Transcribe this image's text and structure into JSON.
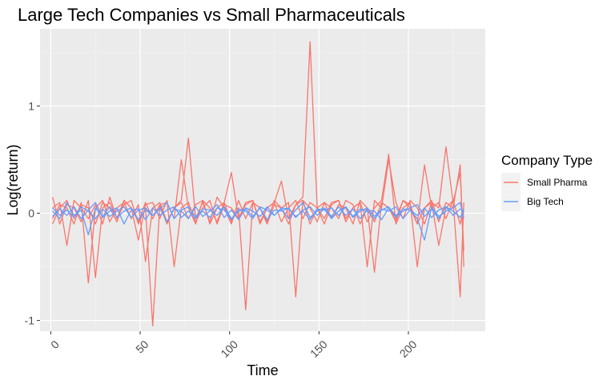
{
  "chart_data": {
    "type": "line",
    "title": "Large Tech Companies vs Small Pharmaceuticals",
    "xlabel": "Time",
    "ylabel": "Log(return)",
    "xlim": [
      -6,
      243
    ],
    "ylim": [
      -1.1,
      1.72
    ],
    "x_ticks": [
      0,
      50,
      100,
      150,
      200
    ],
    "x_tick_labels": [
      "0",
      "50",
      "100",
      "150",
      "200"
    ],
    "y_ticks": [
      -1,
      0,
      1
    ],
    "y_tick_labels": [
      "-1",
      "0",
      "1"
    ],
    "grid": true,
    "legend": {
      "title": "Company Type",
      "position": "right",
      "entries": [
        {
          "label": "Small Pharma",
          "color": "#F8766D"
        },
        {
          "label": "Big Tech",
          "color": "#619CFF"
        }
      ]
    },
    "series": [
      {
        "group": "Small Pharma",
        "color": "#F8766D",
        "x": [
          1,
          5,
          9,
          13,
          17,
          21,
          25,
          29,
          33,
          37,
          41,
          45,
          49,
          53,
          57,
          61,
          65,
          69,
          73,
          77,
          81,
          85,
          89,
          93,
          97,
          101,
          105,
          109,
          113,
          117,
          121,
          125,
          129,
          133,
          137,
          141,
          145,
          149,
          153,
          157,
          161,
          165,
          169,
          173,
          177,
          181,
          185,
          189,
          193,
          197,
          201,
          205,
          209,
          213,
          217,
          221,
          225,
          229,
          231
        ],
        "values": [
          0.05,
          0.1,
          -0.3,
          0.12,
          0.05,
          -0.05,
          0.08,
          -0.1,
          0.15,
          -0.05,
          0.12,
          0.05,
          -0.08,
          0.1,
          -0.05,
          0.08,
          -0.1,
          0.05,
          0.12,
          0.7,
          -0.05,
          0.1,
          -0.08,
          0.15,
          0.05,
          -0.1,
          0.12,
          -0.05,
          0.1,
          0.05,
          -0.08,
          0.12,
          0.05,
          -0.1,
          0.08,
          0.15,
          1.6,
          0.05,
          -0.05,
          0.1,
          0.12,
          -0.08,
          0.05,
          0.1,
          -0.5,
          0.12,
          0.05,
          0.5,
          0.1,
          -0.05,
          0.12,
          0.05,
          -0.1,
          0.1,
          0.05,
          0.62,
          0.1,
          0.38,
          -0.35
        ]
      },
      {
        "group": "Small Pharma",
        "color": "#F8766D",
        "x": [
          1,
          5,
          9,
          13,
          17,
          21,
          25,
          29,
          33,
          37,
          41,
          45,
          49,
          53,
          57,
          61,
          65,
          69,
          73,
          77,
          81,
          85,
          89,
          93,
          97,
          101,
          105,
          109,
          113,
          117,
          121,
          125,
          129,
          133,
          137,
          141,
          145,
          149,
          153,
          157,
          161,
          165,
          169,
          173,
          177,
          181,
          185,
          189,
          193,
          197,
          201,
          205,
          209,
          213,
          217,
          221,
          225,
          229,
          231
        ],
        "values": [
          -0.05,
          0.08,
          0.05,
          -0.1,
          0.1,
          -0.65,
          0.05,
          0.12,
          -0.08,
          0.05,
          0.1,
          -0.05,
          0.08,
          -0.45,
          0.05,
          0.1,
          -0.08,
          0.05,
          0.1,
          -0.05,
          0.08,
          0.12,
          -0.1,
          0.05,
          0.1,
          -0.08,
          0.05,
          -0.9,
          0.1,
          0.05,
          -0.1,
          0.08,
          0.05,
          0.1,
          -0.78,
          0.12,
          0.05,
          -0.08,
          0.1,
          0.05,
          -0.05,
          0.12,
          0.08,
          -0.1,
          0.05,
          -0.55,
          0.1,
          0.05,
          -0.08,
          0.12,
          0.05,
          -0.1,
          0.45,
          0.05,
          0.1,
          -0.05,
          0.12,
          -0.78,
          0.1
        ]
      },
      {
        "group": "Small Pharma",
        "color": "#F8766D",
        "x": [
          1,
          5,
          9,
          13,
          17,
          21,
          25,
          29,
          33,
          37,
          41,
          45,
          49,
          53,
          57,
          61,
          65,
          69,
          73,
          77,
          81,
          85,
          89,
          93,
          97,
          101,
          105,
          109,
          113,
          117,
          121,
          125,
          129,
          133,
          137,
          141,
          145,
          149,
          153,
          157,
          161,
          165,
          169,
          173,
          177,
          181,
          185,
          189,
          193,
          197,
          201,
          205,
          209,
          213,
          217,
          221,
          225,
          229,
          231
        ],
        "values": [
          0.15,
          -0.1,
          0.08,
          0.05,
          -0.08,
          0.12,
          -0.6,
          0.05,
          0.1,
          -0.05,
          0.08,
          0.12,
          -0.1,
          0.05,
          -1.05,
          0.08,
          0.1,
          -0.05,
          0.5,
          0.05,
          -0.1,
          0.12,
          0.05,
          -0.08,
          0.1,
          0.38,
          -0.05,
          0.08,
          0.12,
          -0.1,
          0.05,
          0.1,
          -0.08,
          0.05,
          0.12,
          -0.05,
          0.1,
          0.05,
          -0.1,
          0.08,
          0.12,
          -0.05,
          0.05,
          0.1,
          -0.08,
          0.05,
          0.12,
          0.55,
          -0.1,
          0.05,
          0.1,
          -0.5,
          0.05,
          0.12,
          -0.08,
          0.1,
          0.05,
          0.45,
          -0.5
        ]
      },
      {
        "group": "Small Pharma",
        "color": "#F8766D",
        "x": [
          1,
          5,
          9,
          13,
          17,
          21,
          25,
          29,
          33,
          37,
          41,
          45,
          49,
          53,
          57,
          61,
          65,
          69,
          73,
          77,
          81,
          85,
          89,
          93,
          97,
          101,
          105,
          109,
          113,
          117,
          121,
          125,
          129,
          133,
          137,
          141,
          145,
          149,
          153,
          157,
          161,
          165,
          169,
          173,
          177,
          181,
          185,
          189,
          193,
          197,
          201,
          205,
          209,
          213,
          217,
          221,
          225,
          229,
          231
        ],
        "values": [
          -0.1,
          0.05,
          0.12,
          -0.05,
          0.08,
          0.05,
          -0.1,
          0.1,
          0.05,
          -0.08,
          0.12,
          0.05,
          -0.25,
          0.08,
          0.1,
          -0.05,
          0.12,
          -0.5,
          0.05,
          0.1,
          -0.08,
          0.05,
          0.12,
          -0.1,
          0.08,
          0.05,
          -0.05,
          0.1,
          0.12,
          -0.08,
          0.05,
          0.1,
          0.3,
          -0.05,
          0.08,
          0.12,
          -0.1,
          0.05,
          0.1,
          -0.05,
          0.08,
          0.05,
          -0.1,
          0.12,
          0.05,
          -0.08,
          0.1,
          0.05,
          -0.05,
          0.12,
          0.08,
          -0.1,
          0.05,
          0.1,
          -0.3,
          0.05,
          0.12,
          -0.1,
          0.05
        ]
      },
      {
        "group": "Big Tech",
        "color": "#619CFF",
        "x": [
          1,
          5,
          9,
          13,
          17,
          21,
          25,
          29,
          33,
          37,
          41,
          45,
          49,
          53,
          57,
          61,
          65,
          69,
          73,
          77,
          81,
          85,
          89,
          93,
          97,
          101,
          105,
          109,
          113,
          117,
          121,
          125,
          129,
          133,
          137,
          141,
          145,
          149,
          153,
          157,
          161,
          165,
          169,
          173,
          177,
          181,
          185,
          189,
          193,
          197,
          201,
          205,
          209,
          213,
          217,
          221,
          225,
          229,
          231
        ],
        "values": [
          0.02,
          -0.05,
          0.1,
          -0.02,
          0.03,
          -0.2,
          0.05,
          -0.03,
          0.06,
          -0.04,
          0.02,
          0.05,
          -0.06,
          0.03,
          -0.02,
          0.05,
          -0.08,
          0.04,
          0.02,
          -0.05,
          0.06,
          -0.03,
          0.02,
          0.08,
          -0.04,
          0.03,
          -0.06,
          0.05,
          0.02,
          -0.03,
          0.06,
          -0.02,
          0.04,
          -0.05,
          0.03,
          0.1,
          -0.04,
          0.02,
          0.05,
          -0.03,
          0.06,
          -0.02,
          0.04,
          -0.05,
          0.03,
          0.02,
          -0.06,
          0.05,
          -0.02,
          0.04,
          0.03,
          -0.05,
          -0.25,
          0.06,
          -0.03,
          0.02,
          0.05,
          0.1,
          -0.05
        ]
      },
      {
        "group": "Big Tech",
        "color": "#619CFF",
        "x": [
          1,
          5,
          9,
          13,
          17,
          21,
          25,
          29,
          33,
          37,
          41,
          45,
          49,
          53,
          57,
          61,
          65,
          69,
          73,
          77,
          81,
          85,
          89,
          93,
          97,
          101,
          105,
          109,
          113,
          117,
          121,
          125,
          129,
          133,
          137,
          141,
          145,
          149,
          153,
          157,
          161,
          165,
          169,
          173,
          177,
          181,
          185,
          189,
          193,
          197,
          201,
          205,
          209,
          213,
          217,
          221,
          225,
          229,
          231
        ],
        "values": [
          -0.03,
          0.04,
          -0.02,
          0.06,
          -0.05,
          0.03,
          0.1,
          -0.04,
          0.02,
          0.05,
          -0.1,
          0.03,
          0.04,
          -0.06,
          0.05,
          -0.02,
          0.03,
          0.06,
          -0.04,
          0.02,
          -0.05,
          0.04,
          0.03,
          -0.02,
          0.06,
          -0.05,
          0.02,
          0.04,
          -0.03,
          0.05,
          -0.06,
          0.03,
          0.02,
          0.05,
          -0.04,
          0.03,
          0.06,
          -0.02,
          0.04,
          -0.05,
          0.02,
          0.06,
          -0.03,
          0.04,
          0.02,
          -0.05,
          0.03,
          0.06,
          -0.04,
          0.02,
          0.05,
          0.08,
          -0.03,
          0.04,
          -0.05,
          0.06,
          0.02,
          -0.04,
          0.03
        ]
      },
      {
        "group": "Big Tech",
        "color": "#619CFF",
        "x": [
          1,
          5,
          9,
          13,
          17,
          21,
          25,
          29,
          33,
          37,
          41,
          45,
          49,
          53,
          57,
          61,
          65,
          69,
          73,
          77,
          81,
          85,
          89,
          93,
          97,
          101,
          105,
          109,
          113,
          117,
          121,
          125,
          129,
          133,
          137,
          141,
          145,
          149,
          153,
          157,
          161,
          165,
          169,
          173,
          177,
          181,
          185,
          189,
          193,
          197,
          201,
          205,
          209,
          213,
          217,
          221,
          225,
          229,
          231
        ],
        "values": [
          0.05,
          -0.02,
          0.03,
          -0.04,
          0.06,
          0.02,
          -0.05,
          0.04,
          -0.03,
          0.02,
          0.06,
          -0.04,
          0.03,
          0.05,
          -0.02,
          0.04,
          0.1,
          -0.05,
          0.03,
          0.06,
          -0.03,
          0.02,
          -0.04,
          0.05,
          0.03,
          -0.06,
          0.04,
          0.02,
          -0.05,
          0.06,
          0.03,
          -0.02,
          0.05,
          0.04,
          -0.03,
          0.02,
          -0.06,
          0.04,
          0.03,
          0.05,
          -0.02,
          0.06,
          -0.04,
          0.02,
          0.05,
          -0.03,
          0.04,
          0.02,
          0.06,
          -0.05,
          0.03,
          -0.02,
          0.05,
          -0.04,
          0.03,
          0.06,
          -0.02,
          0.04,
          0.02
        ]
      }
    ]
  }
}
